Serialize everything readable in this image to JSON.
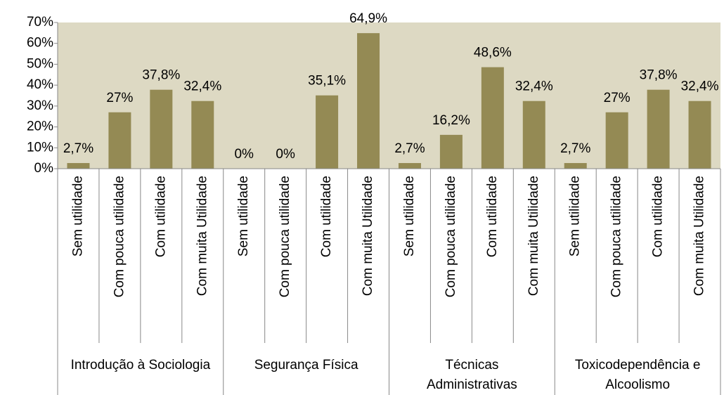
{
  "chart_data": {
    "type": "bar",
    "categories": [
      "Sem utilidade",
      "Com pouca utilidade",
      "Com utilidade",
      "Com muita Utilidade",
      "Sem utilidade",
      "Com pouca utilidade",
      "Com utilidade",
      "Com muita Utilidade",
      "Sem utilidade",
      "Com pouca utilidade",
      "Com utilidade",
      "Com muita Utilidade",
      "Sem utilidade",
      "Com pouca utilidade",
      "Com utilidade",
      "Com muita Utilidade"
    ],
    "groups": [
      "Introdução à Sociologia",
      "Segurança Física",
      "Técnicas Administrativas",
      "Toxicodependência e Alcoolismo"
    ],
    "values": [
      2.7,
      27,
      37.8,
      32.4,
      0,
      0,
      35.1,
      64.9,
      2.7,
      16.2,
      48.6,
      32.4,
      2.7,
      27,
      37.8,
      32.4
    ],
    "value_labels": [
      "2,7%",
      "27%",
      "37,8%",
      "32,4%",
      "0%",
      "0%",
      "35,1%",
      "64,9%",
      "2,7%",
      "16,2%",
      "48,6%",
      "32,4%",
      "2,7%",
      "27%",
      "37,8%",
      "32,4%"
    ],
    "color": "#948a54",
    "background": "#ddd9c3",
    "ylim": [
      0,
      70
    ],
    "yticks": [
      {
        "value": 0,
        "label": "0%"
      },
      {
        "value": 10,
        "label": "10%"
      },
      {
        "value": 20,
        "label": "20%"
      },
      {
        "value": 30,
        "label": "30%"
      },
      {
        "value": 40,
        "label": "40%"
      },
      {
        "value": 50,
        "label": "50%"
      },
      {
        "value": 60,
        "label": "60%"
      },
      {
        "value": 70,
        "label": "70%"
      }
    ]
  }
}
